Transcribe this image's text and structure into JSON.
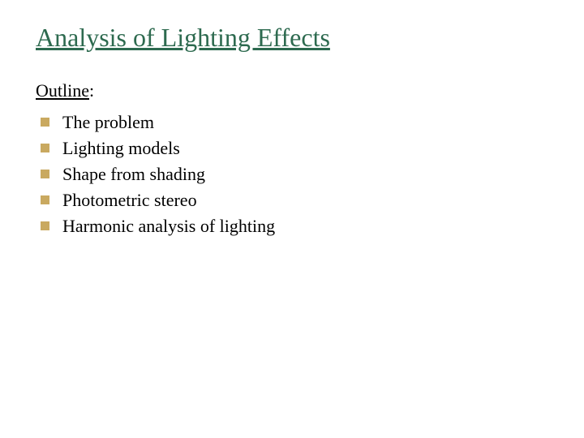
{
  "slide": {
    "title": "Analysis of Lighting Effects",
    "subtitle_underlined": "Outline",
    "subtitle_suffix": ":",
    "bullets": [
      "The problem",
      "Lighting models",
      "Shape from shading",
      "Photometric stereo",
      "Harmonic analysis of lighting"
    ],
    "colors": {
      "title_color": "#2d6a4f",
      "text_color": "#000000",
      "bullet_color": "#c9a960",
      "background_color": "#ffffff"
    },
    "typography": {
      "title_fontsize": 32,
      "body_fontsize": 22,
      "font_family": "Georgia, Times New Roman, serif"
    }
  }
}
